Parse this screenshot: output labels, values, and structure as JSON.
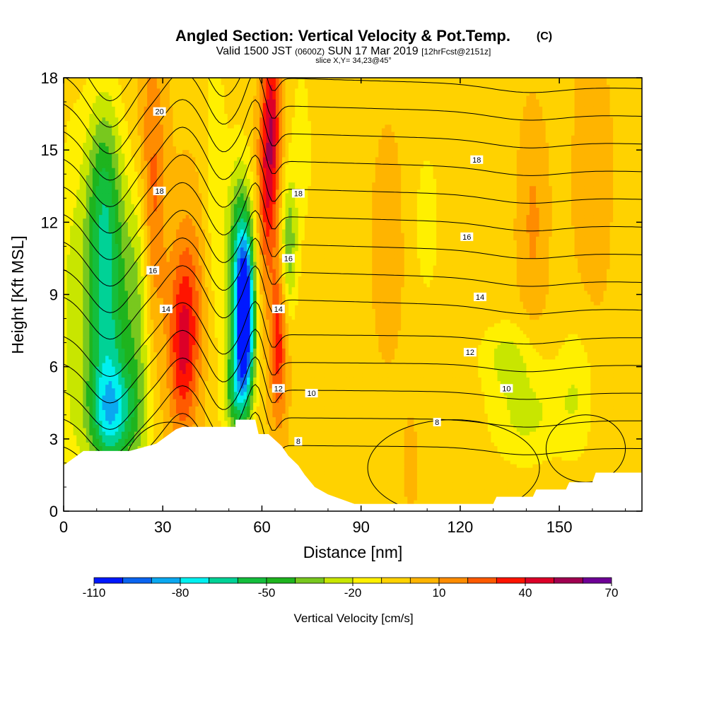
{
  "header": {
    "title": "Angled Section: Vertical Velocity & Pot.Temp.",
    "title_tag": "(C)",
    "valid_prefix": "Valid 1500 JST",
    "valid_z": "(0600Z)",
    "valid_date": "SUN 17 Mar 2019",
    "fcst": "[12hrFcst@2151z]",
    "slice": "slice X,Y= 34,23@45°"
  },
  "chart_data": {
    "type": "heatmap",
    "xlabel": "Distance [nm]",
    "ylabel": "Height [Kft MSL]",
    "xlim": [
      0,
      175
    ],
    "ylim": [
      0,
      18
    ],
    "x_ticks": [
      0,
      30,
      60,
      90,
      120,
      150
    ],
    "y_ticks": [
      0,
      3,
      6,
      9,
      12,
      15,
      18
    ],
    "colorbar": {
      "label": "Vertical Velocity [cm/s]",
      "tick_values": [
        -110,
        -80,
        -50,
        -20,
        10,
        40,
        70
      ],
      "bins": [
        {
          "from": -110,
          "to": -100,
          "color": "#0018ff"
        },
        {
          "from": -100,
          "to": -90,
          "color": "#0a64f0"
        },
        {
          "from": -90,
          "to": -80,
          "color": "#0aa8f0"
        },
        {
          "from": -80,
          "to": -70,
          "color": "#00f0f0"
        },
        {
          "from": -70,
          "to": -60,
          "color": "#00d296"
        },
        {
          "from": -60,
          "to": -50,
          "color": "#14be3c"
        },
        {
          "from": -50,
          "to": -40,
          "color": "#1eb41e"
        },
        {
          "from": -40,
          "to": -30,
          "color": "#78c81e"
        },
        {
          "from": -30,
          "to": -20,
          "color": "#c8e600"
        },
        {
          "from": -20,
          "to": -10,
          "color": "#fff000"
        },
        {
          "from": -10,
          "to": 0,
          "color": "#ffd200"
        },
        {
          "from": 0,
          "to": 10,
          "color": "#ffb400"
        },
        {
          "from": 10,
          "to": 20,
          "color": "#ff8c00"
        },
        {
          "from": 20,
          "to": 30,
          "color": "#ff5a00"
        },
        {
          "from": 30,
          "to": 40,
          "color": "#ff1400"
        },
        {
          "from": 40,
          "to": 50,
          "color": "#dc0028"
        },
        {
          "from": 50,
          "to": 60,
          "color": "#a00050"
        },
        {
          "from": 60,
          "to": 70,
          "color": "#6e0096"
        }
      ]
    },
    "terrain": [
      [
        0,
        1.9
      ],
      [
        3,
        2.2
      ],
      [
        6,
        2.5
      ],
      [
        10,
        2.5
      ],
      [
        20,
        2.5
      ],
      [
        28,
        2.8
      ],
      [
        31,
        3.1
      ],
      [
        34,
        3.4
      ],
      [
        36,
        3.5
      ],
      [
        52,
        3.5
      ],
      [
        52,
        3.8
      ],
      [
        58,
        3.8
      ],
      [
        59,
        3.2
      ],
      [
        62,
        3.2
      ],
      [
        66,
        2.7
      ],
      [
        68,
        2.3
      ],
      [
        71,
        1.9
      ],
      [
        73,
        1.5
      ],
      [
        76,
        1.0
      ],
      [
        80,
        0.7
      ],
      [
        84,
        0.5
      ],
      [
        88,
        0.3
      ],
      [
        120,
        0.3
      ],
      [
        130,
        0.3
      ],
      [
        131,
        0.6
      ],
      [
        142,
        0.6
      ],
      [
        143,
        0.9
      ],
      [
        152,
        0.9
      ],
      [
        153,
        1.2
      ],
      [
        160,
        1.2
      ],
      [
        161,
        1.6
      ],
      [
        175,
        1.6
      ]
    ],
    "vertical_velocity_features": [
      {
        "x": 13,
        "y": 7.5,
        "value": -55,
        "sx": 5,
        "sy": 4
      },
      {
        "x": 15,
        "y": 4.0,
        "value": -45,
        "sx": 5,
        "sy": 1.5
      },
      {
        "x": 12,
        "y": 13.5,
        "value": -35,
        "sx": 4,
        "sy": 3
      },
      {
        "x": 2,
        "y": 8,
        "value": -15,
        "sx": 3,
        "sy": 6
      },
      {
        "x": 23,
        "y": 8,
        "value": -25,
        "sx": 3,
        "sy": 5
      },
      {
        "x": 36,
        "y": 6.5,
        "value": 35,
        "sx": 3,
        "sy": 2.5
      },
      {
        "x": 38,
        "y": 9,
        "value": 20,
        "sx": 4,
        "sy": 3
      },
      {
        "x": 27,
        "y": 12,
        "value": 25,
        "sx": 2.5,
        "sy": 4
      },
      {
        "x": 25,
        "y": 16,
        "value": 10,
        "sx": 4,
        "sy": 3
      },
      {
        "x": 46,
        "y": 13,
        "value": -15,
        "sx": 2.5,
        "sy": 5
      },
      {
        "x": 55,
        "y": 8,
        "value": -100,
        "sx": 2,
        "sy": 2.5
      },
      {
        "x": 53,
        "y": 10,
        "value": -50,
        "sx": 2.5,
        "sy": 3
      },
      {
        "x": 52,
        "y": 5,
        "value": -40,
        "sx": 2.5,
        "sy": 1.5
      },
      {
        "x": 63,
        "y": 16,
        "value": 45,
        "sx": 2,
        "sy": 3
      },
      {
        "x": 61,
        "y": 13,
        "value": 25,
        "sx": 1.8,
        "sy": 3
      },
      {
        "x": 65,
        "y": 7,
        "value": 38,
        "sx": 1.8,
        "sy": 2.5
      },
      {
        "x": 68,
        "y": 11,
        "value": -35,
        "sx": 1.8,
        "sy": 2
      },
      {
        "x": 72,
        "y": 15,
        "value": -12,
        "sx": 2.5,
        "sy": 3
      },
      {
        "x": 98,
        "y": 11,
        "value": 12,
        "sx": 3,
        "sy": 3
      },
      {
        "x": 110,
        "y": 12,
        "value": -12,
        "sx": 3,
        "sy": 2.5
      },
      {
        "x": 105,
        "y": 2,
        "value": 5,
        "sx": 2,
        "sy": 2
      },
      {
        "x": 142,
        "y": 12,
        "value": 15,
        "sx": 3,
        "sy": 3
      },
      {
        "x": 140,
        "y": 4,
        "value": -20,
        "sx": 8,
        "sy": 1.5
      },
      {
        "x": 134,
        "y": 6.5,
        "value": -18,
        "sx": 6,
        "sy": 1
      },
      {
        "x": 160,
        "y": 14,
        "value": 10,
        "sx": 4,
        "sy": 4
      },
      {
        "x": 155,
        "y": 5,
        "value": -15,
        "sx": 4,
        "sy": 2
      }
    ],
    "pot_temp_labels": [
      {
        "text": "20",
        "x": 29,
        "y": 16.6
      },
      {
        "text": "18",
        "x": 29,
        "y": 13.3
      },
      {
        "text": "18",
        "x": 71,
        "y": 13.2
      },
      {
        "text": "18",
        "x": 125,
        "y": 14.6
      },
      {
        "text": "16",
        "x": 27,
        "y": 10.0
      },
      {
        "text": "16",
        "x": 68,
        "y": 10.5
      },
      {
        "text": "16",
        "x": 122,
        "y": 11.4
      },
      {
        "text": "14",
        "x": 31,
        "y": 8.4
      },
      {
        "text": "14",
        "x": 65,
        "y": 8.4
      },
      {
        "text": "14",
        "x": 126,
        "y": 8.9
      },
      {
        "text": "12",
        "x": 65,
        "y": 5.1
      },
      {
        "text": "12",
        "x": 123,
        "y": 6.6
      },
      {
        "text": "10",
        "x": 75,
        "y": 4.9
      },
      {
        "text": "10",
        "x": 134,
        "y": 5.1
      },
      {
        "text": "8",
        "x": 71,
        "y": 2.9
      },
      {
        "text": "8",
        "x": 113,
        "y": 3.7
      }
    ]
  }
}
